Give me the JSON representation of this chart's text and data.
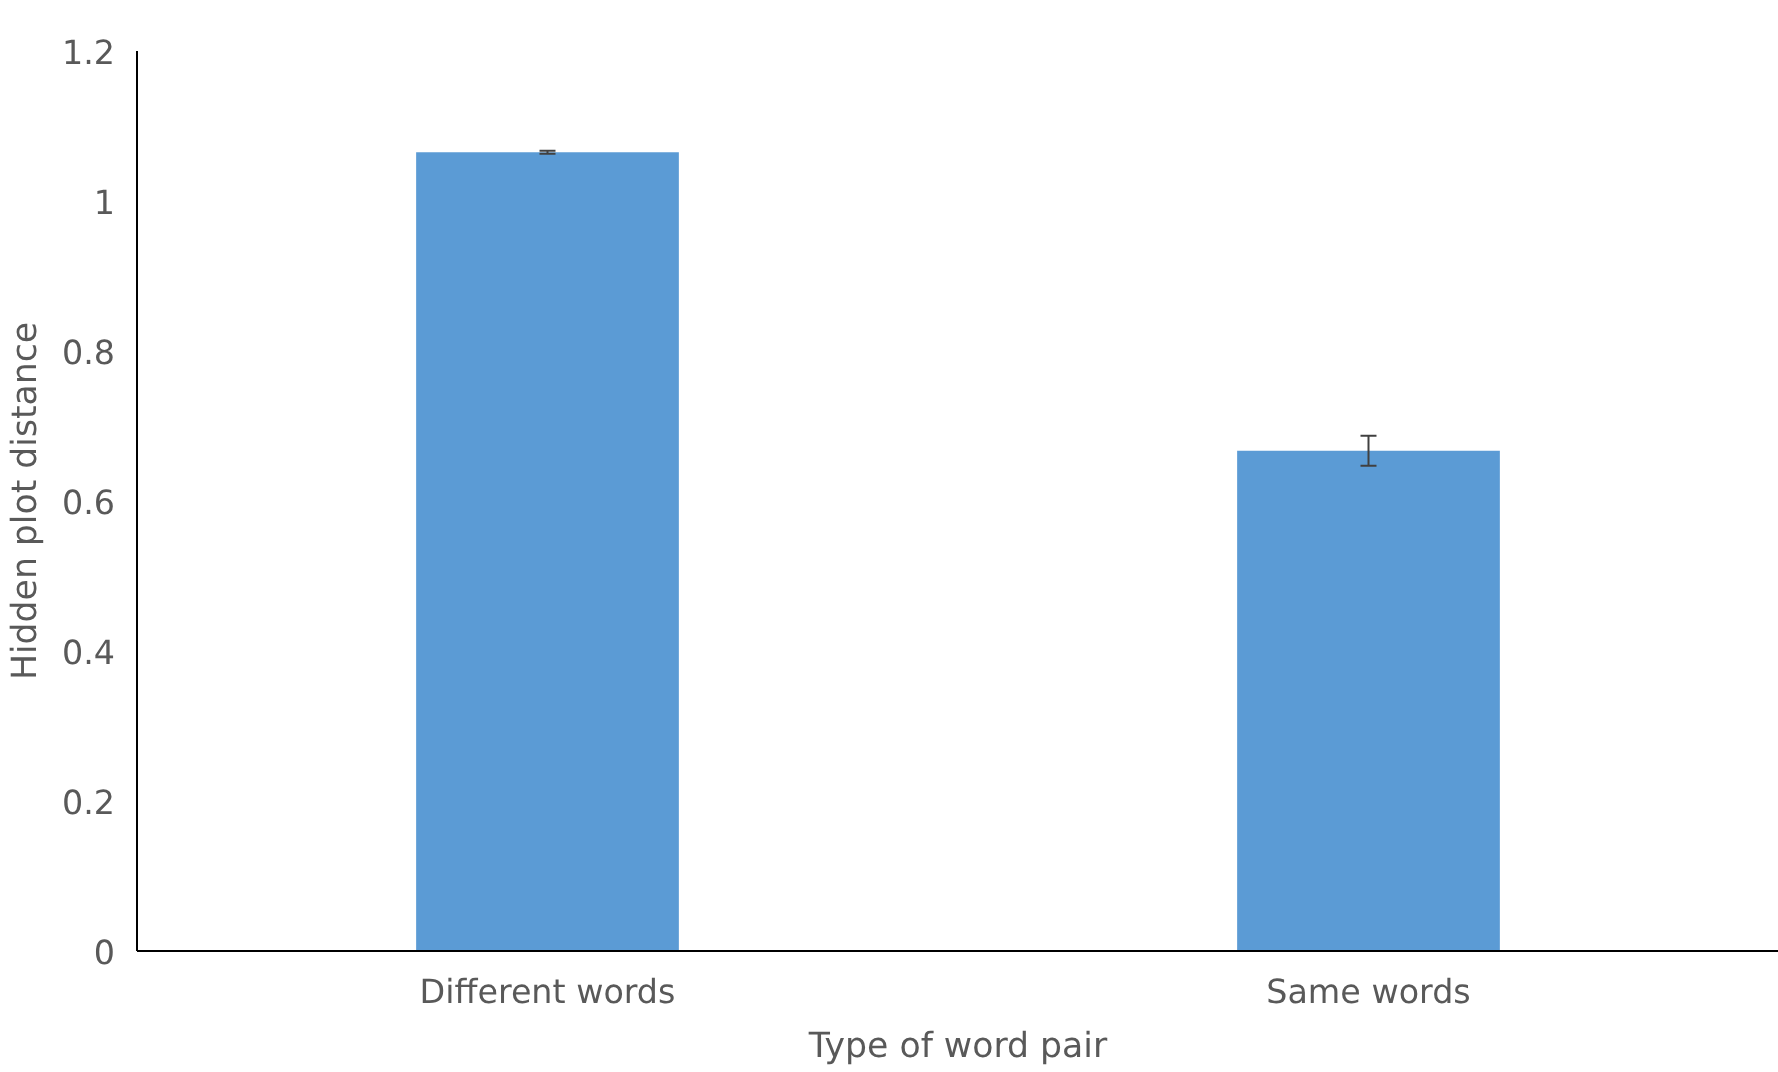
{
  "chart_data": {
    "type": "bar",
    "xlabel": "Type of word pair",
    "ylabel": "Hidden plot distance",
    "categories": [
      "Different words",
      "Same words"
    ],
    "series": [
      {
        "color": "#5b9bd5",
        "values": [
          1.065,
          0.667
        ],
        "errors": [
          0.002,
          0.02
        ]
      }
    ],
    "ylim": [
      0,
      1.2
    ],
    "yticks": [
      {
        "value": 0,
        "label": "0"
      },
      {
        "value": 0.2,
        "label": "0.2"
      },
      {
        "value": 0.4,
        "label": "0.4"
      },
      {
        "value": 0.6,
        "label": "0.6"
      },
      {
        "value": 0.8,
        "label": "0.8"
      },
      {
        "value": 1,
        "label": "1"
      },
      {
        "value": 1.2,
        "label": "1.2"
      }
    ],
    "grid": false
  }
}
